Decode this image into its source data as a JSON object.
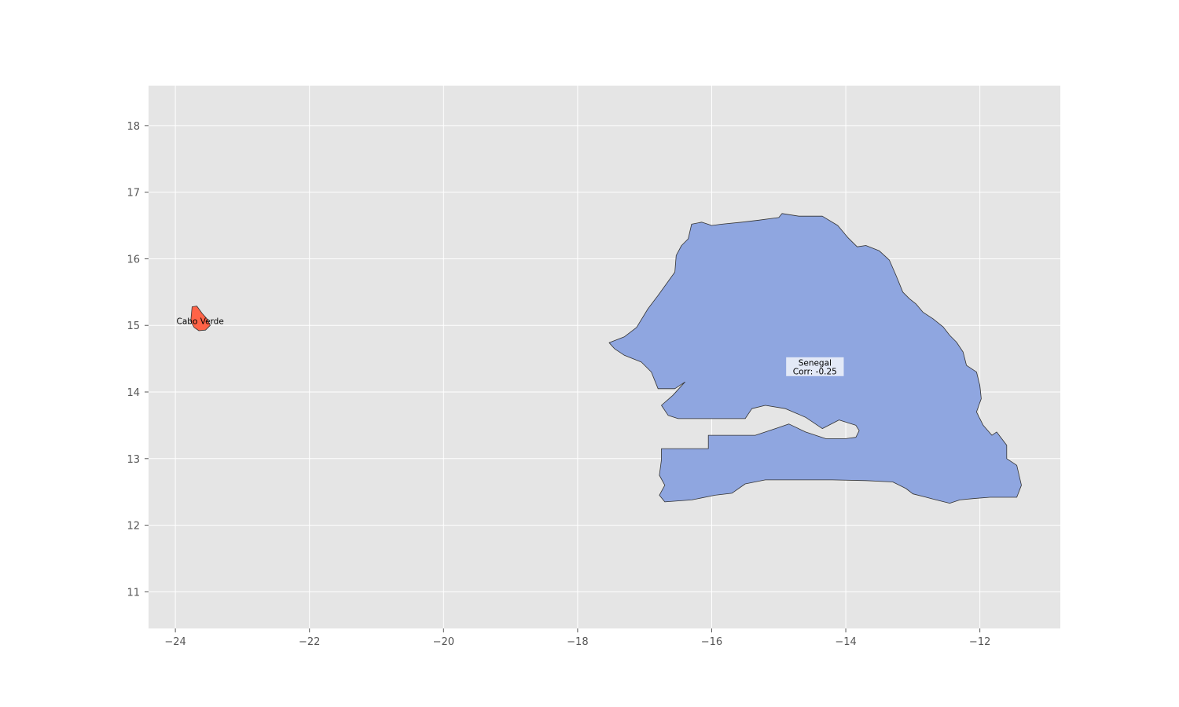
{
  "chart_data": {
    "type": "choropleth-map",
    "title": "",
    "xlabel": "",
    "ylabel": "",
    "xlim": [
      -24.4,
      -10.8
    ],
    "ylim": [
      10.45,
      18.6
    ],
    "x_ticks": [
      -24,
      -22,
      -20,
      -18,
      -16,
      -14,
      -12
    ],
    "y_ticks": [
      11,
      12,
      13,
      14,
      15,
      16,
      17,
      18
    ],
    "x_tick_labels": [
      "−24",
      "−22",
      "−20",
      "−18",
      "−16",
      "−14",
      "−12"
    ],
    "y_tick_labels": [
      "11",
      "12",
      "13",
      "14",
      "15",
      "16",
      "17",
      "18"
    ],
    "grid": true,
    "background_color": "#e5e5e5",
    "regions": [
      {
        "id": "cabo-verde",
        "label_lines": [
          "Cabo Verde"
        ],
        "color": "#ff6347",
        "label_position": [
          -23.63,
          15.07
        ],
        "label_box": false,
        "polygons": [
          [
            [
              -23.75,
              15.28
            ],
            [
              -23.68,
              15.29
            ],
            [
              -23.6,
              15.18
            ],
            [
              -23.53,
              15.1
            ],
            [
              -23.48,
              15.0
            ],
            [
              -23.55,
              14.93
            ],
            [
              -23.65,
              14.92
            ],
            [
              -23.72,
              14.97
            ],
            [
              -23.77,
              15.06
            ],
            [
              -23.76,
              15.18
            ]
          ]
        ]
      },
      {
        "id": "senegal",
        "label_lines": [
          "Senegal",
          "Corr: -0.25"
        ],
        "color": "#8fa6e0",
        "label_position": [
          -14.46,
          14.38
        ],
        "label_box": true,
        "polygons": [
          [
            [
              -17.53,
              14.74
            ],
            [
              -17.3,
              14.83
            ],
            [
              -17.12,
              14.97
            ],
            [
              -16.95,
              15.25
            ],
            [
              -16.8,
              15.45
            ],
            [
              -16.55,
              15.8
            ],
            [
              -16.53,
              16.05
            ],
            [
              -16.45,
              16.2
            ],
            [
              -16.35,
              16.3
            ],
            [
              -16.3,
              16.52
            ],
            [
              -16.15,
              16.55
            ],
            [
              -16.0,
              16.5
            ],
            [
              -15.85,
              16.52
            ],
            [
              -15.55,
              16.55
            ],
            [
              -15.3,
              16.58
            ],
            [
              -15.0,
              16.62
            ],
            [
              -14.95,
              16.68
            ],
            [
              -14.7,
              16.64
            ],
            [
              -14.35,
              16.64
            ],
            [
              -14.12,
              16.5
            ],
            [
              -13.97,
              16.32
            ],
            [
              -13.83,
              16.18
            ],
            [
              -13.7,
              16.2
            ],
            [
              -13.5,
              16.12
            ],
            [
              -13.35,
              15.98
            ],
            [
              -13.25,
              15.75
            ],
            [
              -13.15,
              15.5
            ],
            [
              -13.05,
              15.4
            ],
            [
              -12.95,
              15.32
            ],
            [
              -12.85,
              15.2
            ],
            [
              -12.7,
              15.1
            ],
            [
              -12.55,
              14.98
            ],
            [
              -12.45,
              14.85
            ],
            [
              -12.35,
              14.75
            ],
            [
              -12.25,
              14.6
            ],
            [
              -12.2,
              14.4
            ],
            [
              -12.05,
              14.3
            ],
            [
              -12.0,
              14.1
            ],
            [
              -11.98,
              13.9
            ],
            [
              -12.05,
              13.7
            ],
            [
              -11.95,
              13.5
            ],
            [
              -11.82,
              13.35
            ],
            [
              -11.75,
              13.4
            ],
            [
              -11.6,
              13.2
            ],
            [
              -11.6,
              13.0
            ],
            [
              -11.45,
              12.9
            ],
            [
              -11.38,
              12.6
            ],
            [
              -11.45,
              12.42
            ],
            [
              -11.65,
              12.42
            ],
            [
              -11.85,
              12.42
            ],
            [
              -12.1,
              12.4
            ],
            [
              -12.3,
              12.38
            ],
            [
              -12.45,
              12.33
            ],
            [
              -12.65,
              12.38
            ],
            [
              -12.8,
              12.42
            ],
            [
              -13.0,
              12.47
            ],
            [
              -13.1,
              12.55
            ],
            [
              -13.3,
              12.65
            ],
            [
              -13.7,
              12.67
            ],
            [
              -14.2,
              12.68
            ],
            [
              -15.2,
              12.68
            ],
            [
              -15.5,
              12.62
            ],
            [
              -15.7,
              12.48
            ],
            [
              -15.95,
              12.45
            ],
            [
              -16.3,
              12.38
            ],
            [
              -16.7,
              12.35
            ],
            [
              -16.78,
              12.45
            ],
            [
              -16.7,
              12.6
            ],
            [
              -16.78,
              12.75
            ],
            [
              -16.75,
              12.98
            ],
            [
              -16.75,
              13.15
            ],
            [
              -16.05,
              13.15
            ],
            [
              -16.05,
              13.35
            ],
            [
              -15.35,
              13.35
            ],
            [
              -15.05,
              13.45
            ],
            [
              -14.85,
              13.52
            ],
            [
              -14.6,
              13.4
            ],
            [
              -14.3,
              13.3
            ],
            [
              -14.0,
              13.3
            ],
            [
              -13.85,
              13.32
            ],
            [
              -13.8,
              13.42
            ],
            [
              -13.85,
              13.5
            ],
            [
              -14.1,
              13.58
            ],
            [
              -14.35,
              13.45
            ],
            [
              -14.6,
              13.62
            ],
            [
              -14.9,
              13.75
            ],
            [
              -15.2,
              13.8
            ],
            [
              -15.4,
              13.75
            ],
            [
              -15.5,
              13.6
            ],
            [
              -16.5,
              13.6
            ],
            [
              -16.65,
              13.65
            ],
            [
              -16.75,
              13.8
            ],
            [
              -16.58,
              13.95
            ],
            [
              -16.4,
              14.15
            ],
            [
              -16.55,
              14.05
            ],
            [
              -16.8,
              14.05
            ],
            [
              -16.9,
              14.3
            ],
            [
              -17.05,
              14.45
            ],
            [
              -17.3,
              14.55
            ],
            [
              -17.45,
              14.65
            ]
          ]
        ]
      }
    ]
  }
}
